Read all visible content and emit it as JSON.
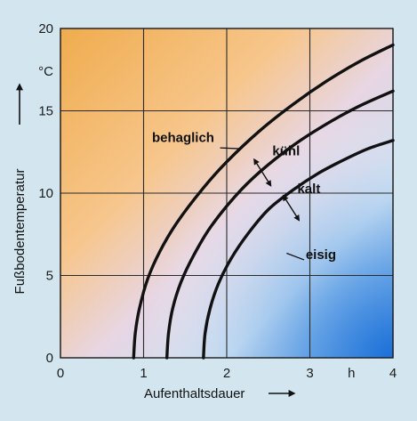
{
  "chart_data": {
    "type": "line",
    "xlabel": "Aufenthaltsdauer",
    "ylabel": "Fußbodentemperatur",
    "x_unit": "h",
    "y_unit": "°C",
    "xlim": [
      0,
      4
    ],
    "ylim": [
      0,
      20
    ],
    "x_ticks": [
      0,
      1,
      2,
      3,
      4
    ],
    "y_ticks": [
      0,
      5,
      10,
      15,
      20
    ],
    "grid": true,
    "boundaries": [
      {
        "name": "behaglich",
        "x": [
          0.88,
          0.9,
          0.95,
          1.05,
          1.2,
          1.4,
          1.7,
          2.0,
          2.4,
          2.8,
          3.2,
          3.6,
          4.0
        ],
        "y": [
          0,
          1.5,
          3,
          4.8,
          6.5,
          8.2,
          10.2,
          11.9,
          13.8,
          15.4,
          16.8,
          18.0,
          19.0
        ]
      },
      {
        "name": "",
        "x": [
          1.28,
          1.3,
          1.35,
          1.45,
          1.6,
          1.8,
          2.1,
          2.4,
          2.8,
          3.2,
          3.6,
          4.0
        ],
        "y": [
          0,
          1.5,
          3,
          4.6,
          6.2,
          7.9,
          9.8,
          11.3,
          12.9,
          14.2,
          15.3,
          16.2
        ]
      },
      {
        "name": "",
        "x": [
          1.72,
          1.74,
          1.8,
          1.9,
          2.05,
          2.25,
          2.5,
          2.8,
          3.1,
          3.4,
          3.7,
          4.0
        ],
        "y": [
          0,
          1.5,
          3,
          4.5,
          6.0,
          7.5,
          9.0,
          10.2,
          11.2,
          12.0,
          12.7,
          13.2
        ]
      }
    ],
    "annotations": [
      {
        "text": "behaglich",
        "x": 1.85,
        "y": 13.1
      },
      {
        "text": "kühl",
        "x": 2.55,
        "y": 12.3
      },
      {
        "text": "kalt",
        "x": 2.85,
        "y": 10.0
      },
      {
        "text": "eisig",
        "x": 2.95,
        "y": 6.0
      }
    ]
  }
}
